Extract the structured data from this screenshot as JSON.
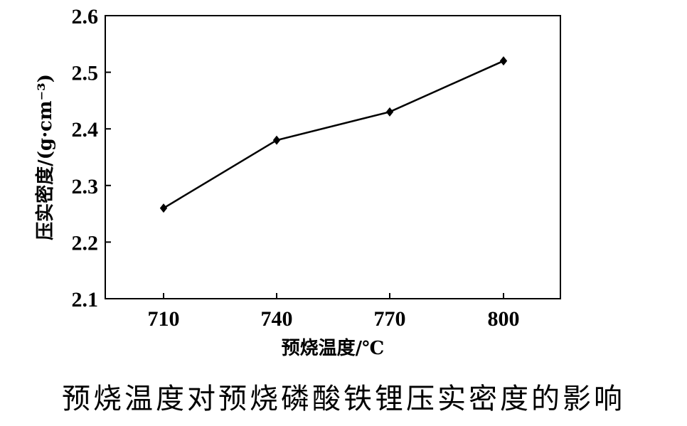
{
  "chart_data": {
    "type": "line",
    "x": [
      710,
      740,
      770,
      800
    ],
    "categories": [
      "710",
      "740",
      "770",
      "800"
    ],
    "series": [
      {
        "values": [
          2.26,
          2.38,
          2.43,
          2.52
        ],
        "marker": "diamond",
        "color": "#000000"
      }
    ],
    "xlabel": "预烧温度/℃",
    "ylabel": "压实密度/(g·cm⁻³)",
    "ylim": [
      2.1,
      2.6
    ],
    "yticks": [
      "2.1",
      "2.2",
      "2.3",
      "2.4",
      "2.5",
      "2.6"
    ],
    "grid": false,
    "legend": "none"
  },
  "caption": "预烧温度对预烧磷酸铁锂压实密度的影响"
}
